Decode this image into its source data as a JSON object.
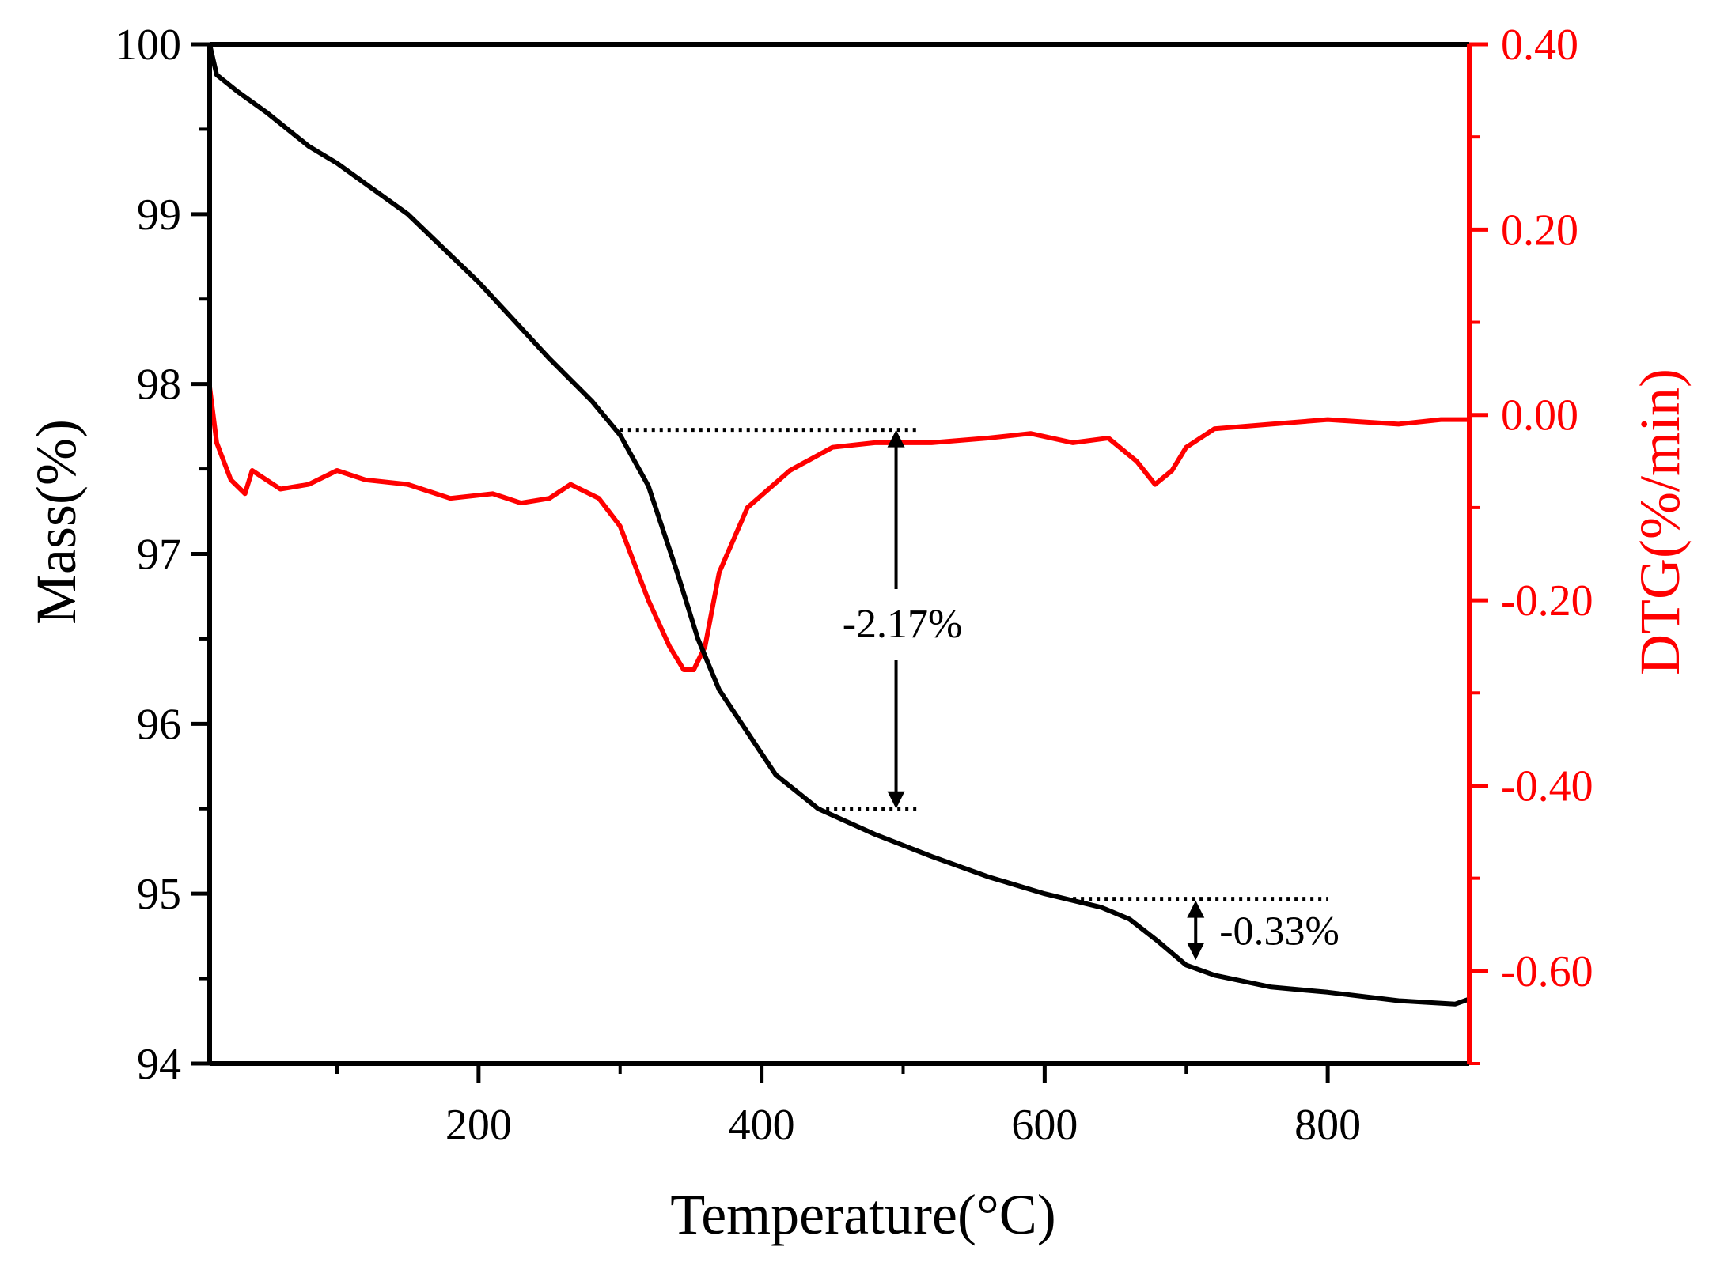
{
  "chart_data": {
    "type": "line",
    "xlabel": "Temperature(°C)",
    "ylabel_left": "Mass(%)",
    "ylabel_right": "DTG(%/min)",
    "xlim": [
      10,
      900
    ],
    "ylim_left": [
      94,
      100
    ],
    "ylim_right": [
      -0.7,
      0.4
    ],
    "x_ticks": [
      200,
      400,
      600,
      800
    ],
    "x_tick_labels": [
      "200",
      "400",
      "600",
      "800"
    ],
    "y_left_ticks": [
      94,
      95,
      96,
      97,
      98,
      99,
      100
    ],
    "y_left_tick_labels": [
      "94",
      "95",
      "96",
      "97",
      "98",
      "99",
      "100"
    ],
    "y_right_ticks": [
      0.4,
      0.2,
      0.0,
      -0.2,
      -0.4,
      -0.6
    ],
    "y_right_tick_labels": [
      "0.40",
      "0.20",
      "0.00",
      "-0.20",
      "-0.40",
      "-0.60"
    ],
    "colors": {
      "mass": "#000000",
      "dtg": "#ff0000",
      "axis": "#000000",
      "right_axis": "#ff0000"
    },
    "series": [
      {
        "name": "Mass",
        "axis": "left",
        "x": [
          10,
          15,
          30,
          50,
          80,
          100,
          150,
          200,
          250,
          280,
          300,
          320,
          340,
          355,
          370,
          390,
          410,
          440,
          480,
          520,
          560,
          600,
          640,
          660,
          680,
          700,
          720,
          760,
          800,
          850,
          890,
          900
        ],
        "values": [
          100.0,
          99.82,
          99.72,
          99.6,
          99.4,
          99.3,
          99.0,
          98.6,
          98.15,
          97.9,
          97.7,
          97.4,
          96.9,
          96.5,
          96.2,
          95.95,
          95.7,
          95.5,
          95.35,
          95.22,
          95.1,
          95.0,
          94.92,
          94.85,
          94.72,
          94.58,
          94.52,
          94.45,
          94.42,
          94.37,
          94.35,
          94.38
        ]
      },
      {
        "name": "DTG",
        "axis": "right",
        "x": [
          10,
          15,
          25,
          35,
          40,
          50,
          60,
          80,
          100,
          120,
          150,
          180,
          210,
          230,
          250,
          265,
          285,
          300,
          320,
          335,
          345,
          352,
          360,
          370,
          390,
          420,
          450,
          480,
          520,
          560,
          590,
          620,
          645,
          665,
          678,
          690,
          700,
          720,
          760,
          800,
          850,
          880,
          900
        ],
        "values": [
          0.03,
          -0.03,
          -0.07,
          -0.085,
          -0.06,
          -0.07,
          -0.08,
          -0.075,
          -0.06,
          -0.07,
          -0.075,
          -0.09,
          -0.085,
          -0.095,
          -0.09,
          -0.075,
          -0.09,
          -0.12,
          -0.2,
          -0.25,
          -0.275,
          -0.275,
          -0.25,
          -0.17,
          -0.1,
          -0.06,
          -0.035,
          -0.03,
          -0.03,
          -0.025,
          -0.02,
          -0.03,
          -0.025,
          -0.05,
          -0.075,
          -0.06,
          -0.035,
          -0.015,
          -0.01,
          -0.005,
          -0.01,
          -0.005,
          -0.005
        ]
      }
    ],
    "annotations": [
      {
        "text": "-2.17%",
        "from_mass": 97.73,
        "to_mass": 95.5,
        "x": 495
      },
      {
        "text": "-0.33%",
        "from_mass": 94.97,
        "to_mass": 94.6,
        "x": 700
      }
    ]
  }
}
